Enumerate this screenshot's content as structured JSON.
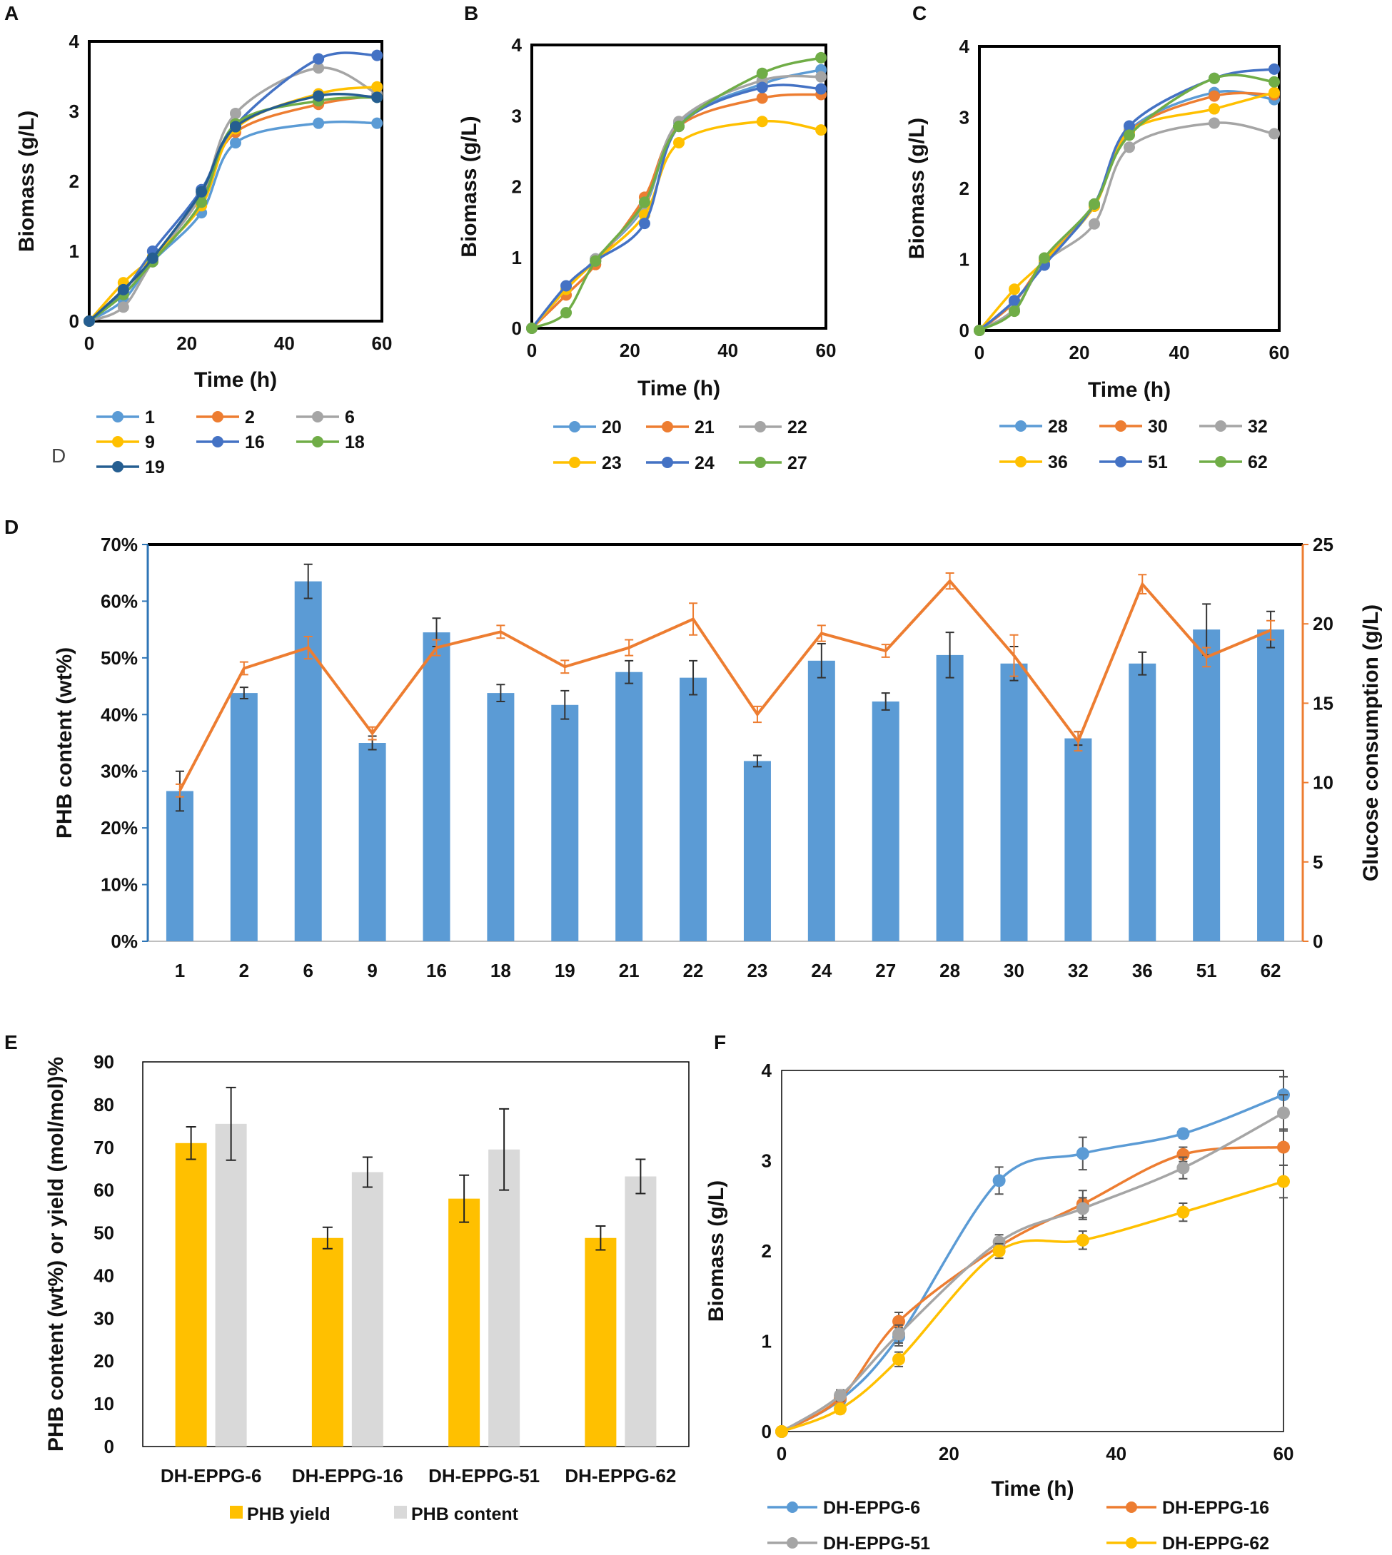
{
  "labels": {
    "panelA": "A",
    "panelB": "B",
    "panelC": "C",
    "panelD": "D",
    "panelE": "E",
    "panelF": "F",
    "strayD": "D"
  },
  "chart_data": [
    {
      "id": "A",
      "type": "line",
      "xlabel": "Time (h)",
      "ylabel": "Biomass (g/L)",
      "xlim": [
        0,
        60
      ],
      "ylim": [
        0,
        4
      ],
      "xticks": [
        0,
        20,
        40,
        60
      ],
      "yticks": [
        0,
        1,
        2,
        3,
        4
      ],
      "x": [
        0,
        7,
        13,
        23,
        30,
        47,
        59
      ],
      "series": [
        {
          "name": "1",
          "color": "#5b9bd5",
          "values": [
            0,
            0.3,
            0.85,
            1.55,
            2.55,
            2.83,
            2.83
          ]
        },
        {
          "name": "2",
          "color": "#ed7d31",
          "values": [
            0,
            0.45,
            0.88,
            1.8,
            2.7,
            3.1,
            3.22
          ]
        },
        {
          "name": "6",
          "color": "#a5a5a5",
          "values": [
            0,
            0.2,
            0.85,
            1.8,
            2.97,
            3.62,
            3.25
          ]
        },
        {
          "name": "9",
          "color": "#ffc000",
          "values": [
            0,
            0.55,
            0.92,
            1.65,
            2.75,
            3.25,
            3.35
          ]
        },
        {
          "name": "16",
          "color": "#4472c4",
          "values": [
            0,
            0.42,
            1.0,
            1.88,
            2.8,
            3.75,
            3.8
          ]
        },
        {
          "name": "18",
          "color": "#70ad47",
          "values": [
            0,
            0.38,
            0.85,
            1.7,
            2.82,
            3.15,
            3.2
          ]
        },
        {
          "name": "19",
          "color": "#255e91",
          "values": [
            0,
            0.45,
            0.9,
            1.85,
            2.78,
            3.22,
            3.2
          ]
        }
      ]
    },
    {
      "id": "B",
      "type": "line",
      "xlabel": "Time (h)",
      "ylabel": "Biomass (g/L)",
      "xlim": [
        0,
        60
      ],
      "ylim": [
        0,
        4
      ],
      "xticks": [
        0,
        20,
        40,
        60
      ],
      "yticks": [
        0,
        1,
        2,
        3,
        4
      ],
      "x": [
        0,
        7,
        13,
        23,
        30,
        47,
        59
      ],
      "series": [
        {
          "name": "20",
          "color": "#5b9bd5",
          "values": [
            0,
            0.55,
            0.98,
            1.72,
            2.9,
            3.45,
            3.65
          ]
        },
        {
          "name": "21",
          "color": "#ed7d31",
          "values": [
            0,
            0.47,
            0.9,
            1.85,
            2.85,
            3.25,
            3.3
          ]
        },
        {
          "name": "22",
          "color": "#a5a5a5",
          "values": [
            0,
            0.55,
            0.98,
            1.75,
            2.92,
            3.5,
            3.55
          ]
        },
        {
          "name": "23",
          "color": "#ffc000",
          "values": [
            0,
            0.55,
            0.95,
            1.6,
            2.62,
            2.92,
            2.8
          ]
        },
        {
          "name": "24",
          "color": "#4472c4",
          "values": [
            0,
            0.6,
            0.95,
            1.48,
            2.85,
            3.4,
            3.38
          ]
        },
        {
          "name": "27",
          "color": "#70ad47",
          "values": [
            0,
            0.22,
            0.95,
            1.78,
            2.85,
            3.6,
            3.82
          ]
        }
      ]
    },
    {
      "id": "C",
      "type": "line",
      "xlabel": "Time (h)",
      "ylabel": "Biomass (g/L)",
      "xlim": [
        0,
        60
      ],
      "ylim": [
        0,
        4
      ],
      "xticks": [
        0,
        20,
        40,
        60
      ],
      "yticks": [
        0,
        1,
        2,
        3,
        4
      ],
      "x": [
        0,
        7,
        13,
        23,
        30,
        47,
        59
      ],
      "series": [
        {
          "name": "28",
          "color": "#5b9bd5",
          "values": [
            0,
            0.4,
            0.95,
            1.75,
            2.82,
            3.35,
            3.25
          ]
        },
        {
          "name": "30",
          "color": "#ed7d31",
          "values": [
            0,
            0.4,
            0.98,
            1.75,
            2.8,
            3.3,
            3.32
          ]
        },
        {
          "name": "32",
          "color": "#a5a5a5",
          "values": [
            0,
            0.3,
            0.95,
            1.5,
            2.58,
            2.92,
            2.77
          ]
        },
        {
          "name": "36",
          "color": "#ffc000",
          "values": [
            0,
            0.58,
            0.98,
            1.75,
            2.8,
            3.12,
            3.35
          ]
        },
        {
          "name": "51",
          "color": "#4472c4",
          "values": [
            0,
            0.42,
            0.92,
            1.78,
            2.88,
            3.55,
            3.68
          ]
        },
        {
          "name": "62",
          "color": "#70ad47",
          "values": [
            0,
            0.27,
            1.02,
            1.78,
            2.75,
            3.55,
            3.5
          ]
        }
      ]
    },
    {
      "id": "D",
      "type": "bar+line",
      "categories": [
        "1",
        "2",
        "6",
        "9",
        "16",
        "18",
        "19",
        "21",
        "22",
        "23",
        "24",
        "27",
        "28",
        "30",
        "32",
        "36",
        "51",
        "62"
      ],
      "bars": {
        "name": "PHB content (wt%)",
        "color": "#5b9bd5",
        "axis": "left",
        "values": [
          26.5,
          43.8,
          63.5,
          35.0,
          54.5,
          43.8,
          41.7,
          47.5,
          46.5,
          31.8,
          49.5,
          42.3,
          50.5,
          49.0,
          35.8,
          49.0,
          55.0,
          55.0
        ],
        "errors": [
          3.5,
          1.0,
          3.0,
          1.2,
          2.5,
          1.5,
          2.5,
          2.0,
          3.0,
          1.0,
          3.0,
          1.5,
          4.0,
          3.0,
          1.2,
          2.0,
          4.5,
          3.2
        ]
      },
      "line": {
        "name": "Glucose consumption (g/L)",
        "color": "#ed7d31",
        "axis": "right",
        "values": [
          9.5,
          17.2,
          18.5,
          13.1,
          18.5,
          19.5,
          17.3,
          18.5,
          20.3,
          14.3,
          19.4,
          18.3,
          22.7,
          18.0,
          12.6,
          22.5,
          17.9,
          19.6
        ],
        "errors": [
          0.4,
          0.4,
          0.7,
          0.4,
          0.5,
          0.4,
          0.4,
          0.5,
          1.0,
          0.5,
          0.5,
          0.4,
          0.5,
          1.3,
          0.6,
          0.6,
          0.6,
          0.6
        ]
      },
      "ylabel": "PHB content (wt%)",
      "ylabel_right": "Glucose  consumption  (g/L)",
      "ylim": [
        0,
        70
      ],
      "ylim_right": [
        0,
        25
      ],
      "yticks": [
        "0%",
        "10%",
        "20%",
        "30%",
        "40%",
        "50%",
        "60%",
        "70%"
      ],
      "yticks_right": [
        "0",
        "5",
        "10",
        "15",
        "20",
        "25"
      ],
      "left_axis_color": "#2e75b6",
      "right_axis_color": "#ed7d31"
    },
    {
      "id": "E",
      "type": "bar",
      "categories": [
        "DH-EPPG-6",
        "DH-EPPG-16",
        "DH-EPPG-51",
        "DH-EPPG-62"
      ],
      "series": [
        {
          "name": "PHB yield",
          "color": "#ffc000",
          "values": [
            71,
            48.8,
            58,
            48.8
          ],
          "errors": [
            3.8,
            2.5,
            5.5,
            2.8
          ]
        },
        {
          "name": "PHB content",
          "color": "#d9d9d9",
          "values": [
            75.5,
            64.2,
            69.5,
            63.2
          ],
          "errors": [
            8.5,
            3.5,
            9.5,
            4.0
          ]
        }
      ],
      "ylabel": "PHB content (wt%) or yield (mol/mol)%",
      "ylim": [
        0,
        90
      ],
      "yticks": [
        "0",
        "10",
        "20",
        "30",
        "40",
        "50",
        "60",
        "70",
        "80",
        "90"
      ]
    },
    {
      "id": "F",
      "type": "line",
      "xlabel": "Time (h)",
      "ylabel": "Biomass (g/L)",
      "xlim": [
        0,
        60
      ],
      "ylim": [
        0,
        4
      ],
      "xticks": [
        0,
        20,
        40,
        60
      ],
      "yticks": [
        0,
        1,
        2,
        3,
        4
      ],
      "x": [
        0,
        7,
        14,
        26,
        36,
        48,
        60
      ],
      "series": [
        {
          "name": "DH-EPPG-6",
          "color": "#5b9bd5",
          "values": [
            0,
            0.35,
            1.05,
            2.78,
            3.08,
            3.3,
            3.73
          ],
          "errors": [
            0,
            0.05,
            0.1,
            0.15,
            0.18,
            0.05,
            0.2
          ]
        },
        {
          "name": "DH-EPPG-16",
          "color": "#ed7d31",
          "values": [
            0,
            0.37,
            1.22,
            2.05,
            2.52,
            3.07,
            3.15
          ],
          "errors": [
            0,
            0.05,
            0.1,
            0.08,
            0.15,
            0.08,
            0.2
          ]
        },
        {
          "name": "DH-EPPG-51",
          "color": "#a5a5a5",
          "values": [
            0,
            0.4,
            1.08,
            2.1,
            2.47,
            2.92,
            3.53
          ],
          "errors": [
            0,
            0.06,
            0.1,
            0.08,
            0.12,
            0.12,
            0.2
          ]
        },
        {
          "name": "DH-EPPG-62",
          "color": "#ffc000",
          "values": [
            0,
            0.25,
            0.8,
            2.0,
            2.12,
            2.43,
            2.77
          ],
          "errors": [
            0,
            0.05,
            0.08,
            0.08,
            0.1,
            0.1,
            0.18
          ]
        }
      ]
    }
  ]
}
